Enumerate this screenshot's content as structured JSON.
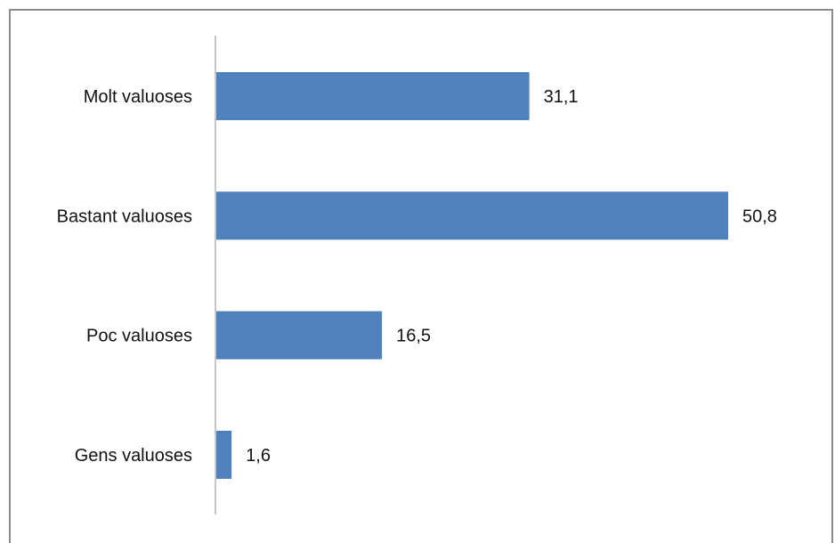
{
  "chart_data": {
    "type": "bar",
    "orientation": "horizontal",
    "categories": [
      "Molt valuoses",
      "Bastant valuoses",
      "Poc valuoses",
      "Gens valuoses"
    ],
    "values": [
      31.1,
      50.8,
      16.5,
      1.6
    ],
    "value_labels": [
      "31,1",
      "50,8",
      "16,5",
      "1,6"
    ],
    "title": "",
    "xlabel": "",
    "ylabel": "",
    "xlim": [
      0,
      50.8
    ],
    "grid": false,
    "legend": "none",
    "bar_color": "#4f81bd",
    "axis_color": "#8c8c8c"
  }
}
